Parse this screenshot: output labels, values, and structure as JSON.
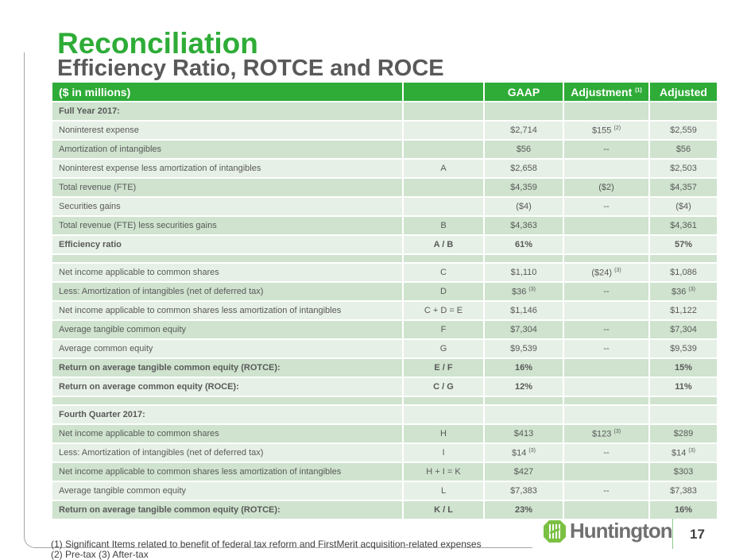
{
  "title": "Reconciliation",
  "subtitle": "Efficiency Ratio, ROTCE and ROCE",
  "header": {
    "label": "($ in millions)",
    "code": "",
    "gaap": "GAAP",
    "adjustment": "Adjustment",
    "adjustment_sup": "(1)",
    "adjusted": "Adjusted"
  },
  "rows": [
    {
      "label": "Full Year 2017:",
      "code": "",
      "gaap": "",
      "adj": "",
      "adj_sup": "",
      "adjusted": "",
      "bold": true
    },
    {
      "label": "Noninterest expense",
      "code": "",
      "gaap": "$2,714",
      "adj": "$155",
      "adj_sup": "(2)",
      "adjusted": "$2,559"
    },
    {
      "label": "Amortization of intangibles",
      "code": "",
      "gaap": "$56",
      "adj": "--",
      "adjusted": "$56"
    },
    {
      "label": "Noninterest expense less amortization of intangibles",
      "code": "A",
      "gaap": "$2,658",
      "adj": "",
      "adjusted": "$2,503"
    },
    {
      "label": "Total revenue (FTE)",
      "code": "",
      "gaap": "$4,359",
      "adj": "($2)",
      "adjusted": "$4,357"
    },
    {
      "label": "Securities gains",
      "code": "",
      "gaap": "($4)",
      "adj": "--",
      "adjusted": "($4)"
    },
    {
      "label": "Total revenue (FTE) less securities gains",
      "code": "B",
      "gaap": "$4,363",
      "adj": "",
      "adjusted": "$4,361"
    },
    {
      "label": "Efficiency ratio",
      "code": "A / B",
      "gaap": "61%",
      "adj": "",
      "adjusted": "57%",
      "bold": true
    },
    {
      "blank": true
    },
    {
      "label": "Net income applicable to common shares",
      "code": "C",
      "gaap": "$1,110",
      "adj": "($24)",
      "adj_sup": "(3)",
      "adjusted": "$1,086"
    },
    {
      "label": "Less: Amortization of intangibles (net of deferred tax)",
      "code": "D",
      "gaap": "$36",
      "gaap_sup": "(3)",
      "adj": "--",
      "adjusted": "$36",
      "adjusted_sup": "(3)"
    },
    {
      "label": "Net income applicable to common shares less amortization of intangibles",
      "code": "C + D = E",
      "gaap": "$1,146",
      "adj": "",
      "adjusted": "$1,122"
    },
    {
      "label": "Average tangible common equity",
      "code": "F",
      "gaap": "$7,304",
      "adj": "--",
      "adjusted": "$7,304"
    },
    {
      "label": "Average common equity",
      "code": "G",
      "gaap": "$9,539",
      "adj": "--",
      "adjusted": "$9,539"
    },
    {
      "label": "Return on average tangible common equity (ROTCE):",
      "code": "E / F",
      "gaap": "16%",
      "adj": "",
      "adjusted": "15%",
      "bold": true
    },
    {
      "label": "Return on average common equity (ROCE):",
      "code": "C / G",
      "gaap": "12%",
      "adj": "",
      "adjusted": "11%",
      "bold": true
    },
    {
      "blank": true
    },
    {
      "label": "Fourth Quarter 2017:",
      "code": "",
      "gaap": "",
      "adj": "",
      "adjusted": "",
      "bold": true
    },
    {
      "label": "Net income applicable to common shares",
      "code": "H",
      "gaap": "$413",
      "adj": "$123",
      "adj_sup": "(3)",
      "adjusted": "$289"
    },
    {
      "label": "Less: Amortization of intangibles (net of deferred tax)",
      "code": "I",
      "gaap": "$14",
      "gaap_sup": "(3)",
      "adj": "--",
      "adjusted": "$14",
      "adjusted_sup": "(3)"
    },
    {
      "label": "Net income applicable to common shares less amortization of intangibles",
      "code": "H + I = K",
      "gaap": "$427",
      "adj": "",
      "adjusted": "$303"
    },
    {
      "label": "Average tangible common equity",
      "code": "L",
      "gaap": "$7,383",
      "adj": "--",
      "adjusted": "$7,383"
    },
    {
      "label": "Return on average tangible common equity (ROTCE):",
      "code": "K / L",
      "gaap": "23%",
      "adj": "",
      "adjusted": "16%",
      "bold": true
    }
  ],
  "footnotes": [
    "(1)   Significant Items related to benefit of federal tax reform and FirstMerit acquisition-related expenses",
    "(2)   Pre-tax   (3)  After-tax"
  ],
  "logo": {
    "text": "Huntington",
    "icon": "huntington-logo-icon"
  },
  "page_number": "17",
  "colors": {
    "green": "#2eac37",
    "row_dark": "#cfe3cf",
    "row_light": "#e6f0e6",
    "logo_green": "#7bc043"
  }
}
